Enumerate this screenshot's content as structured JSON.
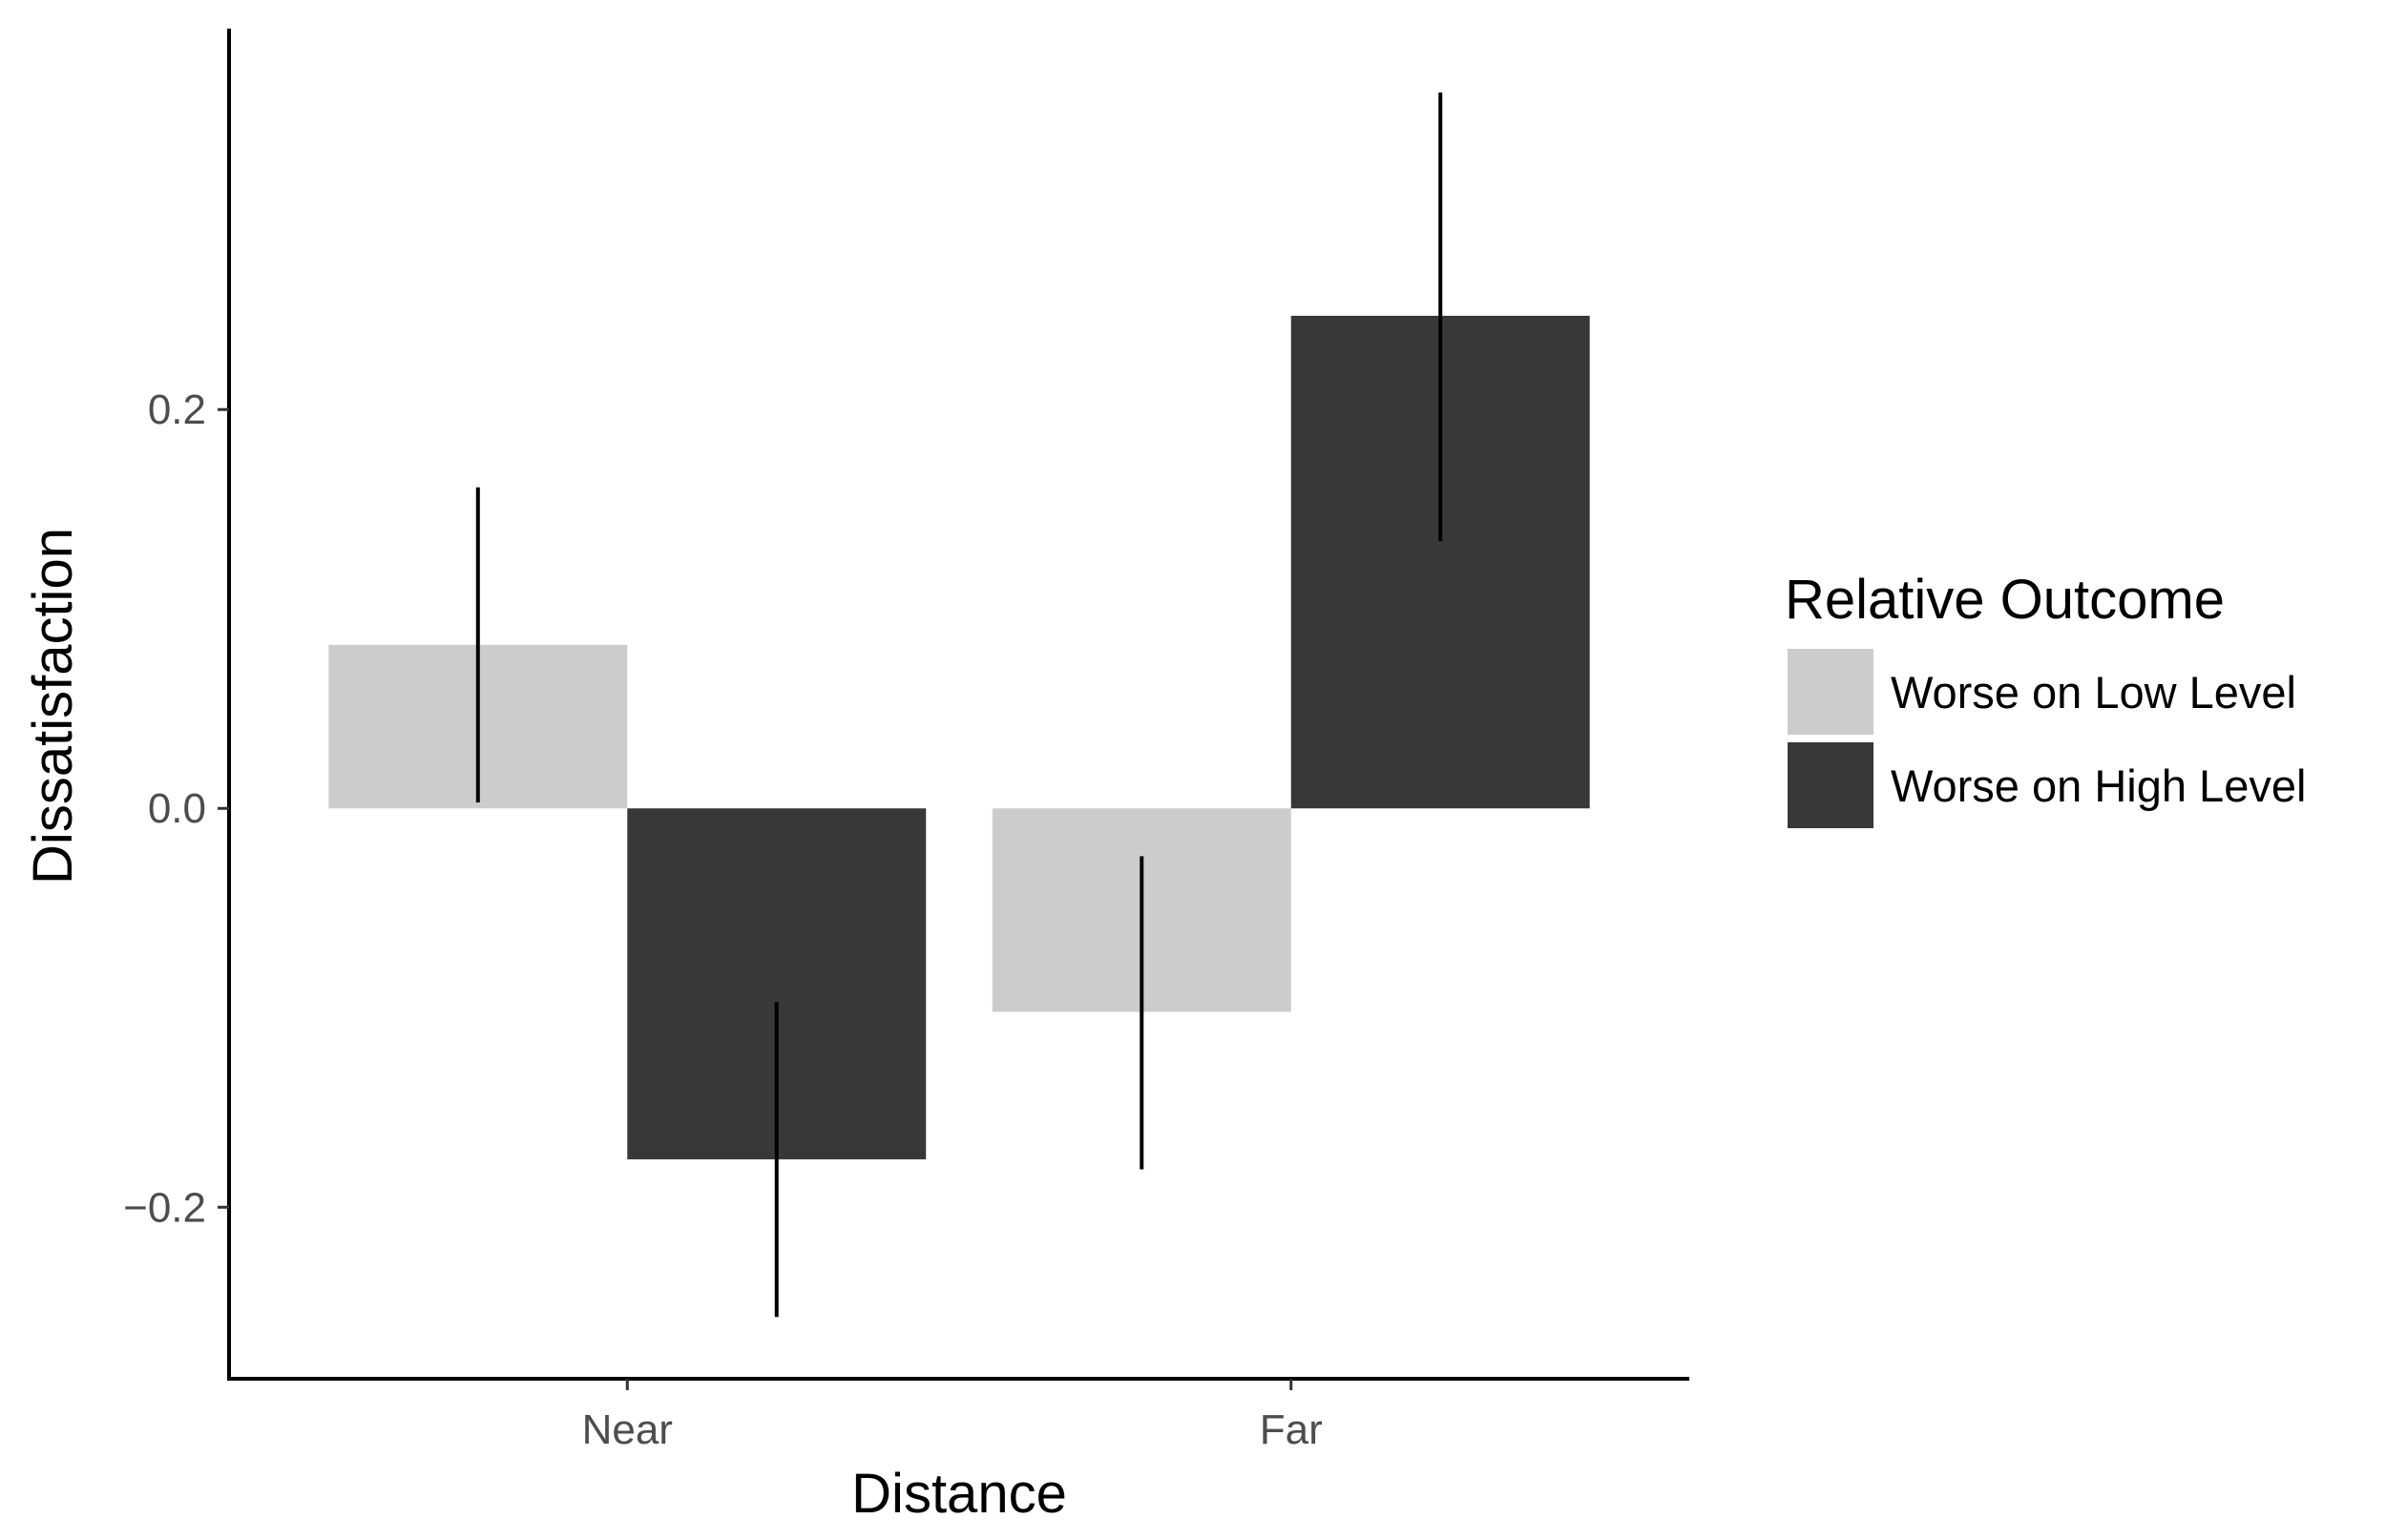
{
  "chart_data": {
    "type": "bar",
    "categories": [
      "Near",
      "Far"
    ],
    "series": [
      {
        "name": "Worse on Low Level",
        "color": "#cccccc",
        "values": [
          0.082,
          -0.102
        ],
        "error_low": [
          0.003,
          -0.181
        ],
        "error_high": [
          0.161,
          -0.024
        ]
      },
      {
        "name": "Worse on High Level",
        "color": "#383838",
        "values": [
          -0.176,
          0.247
        ],
        "error_low": [
          -0.255,
          0.134
        ],
        "error_high": [
          -0.097,
          0.359
        ]
      }
    ],
    "xlabel": "Distance",
    "ylabel": "Dissatisfaction",
    "yticks": [
      {
        "value": 0.2,
        "label": "0.2"
      },
      {
        "value": 0.0,
        "label": "0.0"
      },
      {
        "value": -0.2,
        "label": "−0.2"
      }
    ],
    "ylim": [
      -0.286,
      0.391
    ],
    "grid": false,
    "legend": {
      "title": "Relative Outcome",
      "position": "right"
    }
  }
}
